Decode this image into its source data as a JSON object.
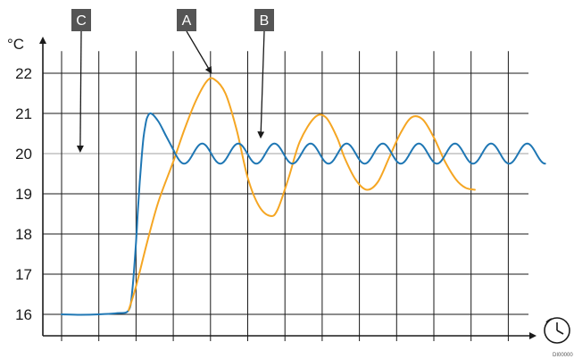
{
  "chart_data": {
    "type": "line",
    "ylabel": "°C",
    "ylim": [
      15.5,
      22.9
    ],
    "y_ticks": [
      16,
      17,
      18,
      19,
      20,
      21,
      22
    ],
    "xlim": [
      0,
      13
    ],
    "x_tick_count": 13,
    "setpoint": 20,
    "grid": true,
    "colors": {
      "blue": "#1f77b4",
      "orange": "#f5a623",
      "setpoint": "#b5b5b5",
      "grid": "#1a1a1a",
      "marker_bg": "#555555"
    },
    "series": [
      {
        "color_key": "blue",
        "x": [
          0,
          0.5,
          1.0,
          1.5,
          1.8,
          1.9,
          2.0,
          2.05,
          2.1,
          2.15,
          2.2,
          2.25,
          2.3,
          2.4,
          2.6,
          2.8,
          3.0,
          3.05
        ],
        "y": [
          16,
          15.99,
          16.0,
          16.03,
          16.1,
          16.6,
          17.8,
          18.6,
          19.3,
          19.9,
          20.4,
          20.7,
          20.9,
          21.0,
          20.8,
          20.45,
          20.1,
          20.0
        ]
      },
      {
        "color_key": "orange",
        "x": [
          1.8,
          2.0,
          2.3,
          2.6,
          3.0,
          3.3,
          3.6,
          3.9,
          4.1,
          4.4,
          4.7,
          5.0,
          5.3,
          5.6,
          5.8,
          6.1,
          6.4,
          6.8,
          7.1,
          7.4,
          7.6,
          7.9,
          8.2,
          8.5,
          8.8,
          9.1,
          9.4,
          9.7,
          10.0,
          10.3,
          10.6,
          10.85,
          11.1
        ],
        "y": [
          16.1,
          16.7,
          17.8,
          18.8,
          19.8,
          20.6,
          21.3,
          21.8,
          21.85,
          21.5,
          20.6,
          19.4,
          18.7,
          18.45,
          18.6,
          19.4,
          20.3,
          20.9,
          20.9,
          20.4,
          19.9,
          19.35,
          19.1,
          19.3,
          19.9,
          20.5,
          20.9,
          20.85,
          20.4,
          19.8,
          19.35,
          19.15,
          19.1
        ]
      },
      {
        "color_key": "blue",
        "sine_from_x": 3.05,
        "sine_to_x": 13.0,
        "center": 20,
        "amplitude": 0.25,
        "period": 0.97
      }
    ],
    "annotations": [
      {
        "label": "C",
        "tip_x": 0.5,
        "tip_y": 20.0
      },
      {
        "label": "A",
        "tip_x": 4.0,
        "tip_y": 21.95
      },
      {
        "label": "B",
        "tip_x": 5.35,
        "tip_y": 20.35
      }
    ]
  },
  "time_icon": "clock-icon",
  "corner_code": "DI00000"
}
